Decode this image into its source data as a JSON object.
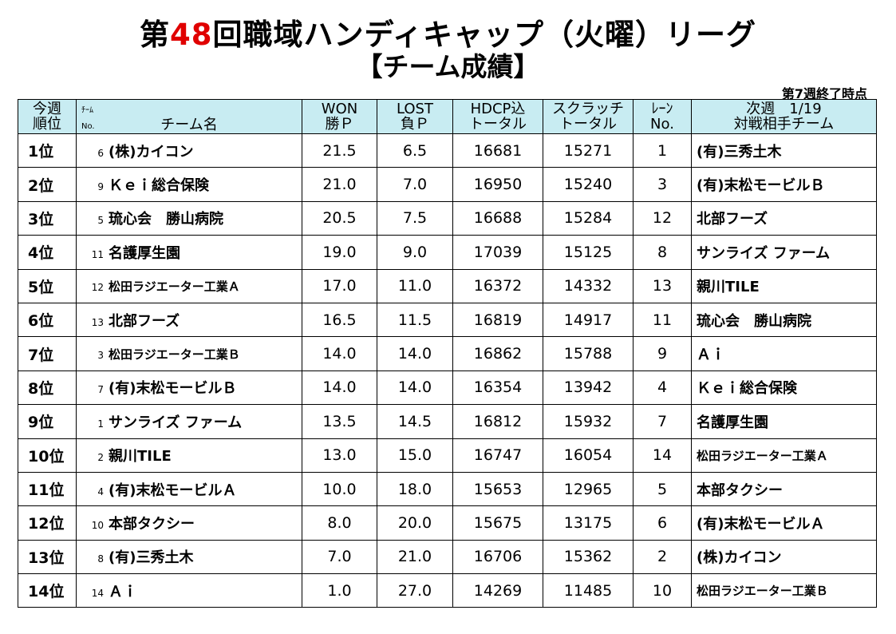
{
  "title": {
    "prefix": "第",
    "number": "48",
    "suffix": "回職域ハンディキャップ（火曜）リーグ"
  },
  "subtitle": "【チーム成績】",
  "status": "第7週終了時点",
  "header": {
    "rank_line1": "今週",
    "rank_line2": "順位",
    "team_tiny1": "ﾁｰﾑ",
    "team_tiny2": "No.",
    "team_label": "チーム名",
    "won_line1": "WON",
    "won_line2": "勝Ｐ",
    "lost_line1": "LOST",
    "lost_line2": "負Ｐ",
    "hdcp_line1": "HDCP込",
    "hdcp_line2": "トータル",
    "scratch_line1": "スクラッチ",
    "scratch_line2": "トータル",
    "lane_line1": "ﾚｰﾝ",
    "lane_line2": "No.",
    "next_line1": "次週　1/19",
    "next_line2": "対戦相手チーム"
  },
  "rows": [
    {
      "rank": "1位",
      "no": "6",
      "team": "(株)カイコン",
      "won": "21.5",
      "lost": "6.5",
      "hdcp": "16681",
      "scratch": "15271",
      "lane": "1",
      "opponent": "(有)三秀土木"
    },
    {
      "rank": "2位",
      "no": "9",
      "team": "Ｋｅｉ総合保険",
      "won": "21.0",
      "lost": "7.0",
      "hdcp": "16950",
      "scratch": "15240",
      "lane": "3",
      "opponent": "(有)末松モービルＢ"
    },
    {
      "rank": "3位",
      "no": "5",
      "team": "琉心会　勝山病院",
      "won": "20.5",
      "lost": "7.5",
      "hdcp": "16688",
      "scratch": "15284",
      "lane": "12",
      "opponent": "北部フーズ"
    },
    {
      "rank": "4位",
      "no": "11",
      "team": "名護厚生園",
      "won": "19.0",
      "lost": "9.0",
      "hdcp": "17039",
      "scratch": "15125",
      "lane": "8",
      "opponent": "サンライズ ファーム"
    },
    {
      "rank": "5位",
      "no": "12",
      "team": "松田ラジエーター工業Ａ",
      "won": "17.0",
      "lost": "11.0",
      "hdcp": "16372",
      "scratch": "14332",
      "lane": "13",
      "opponent": "親川TILE"
    },
    {
      "rank": "6位",
      "no": "13",
      "team": "北部フーズ",
      "won": "16.5",
      "lost": "11.5",
      "hdcp": "16819",
      "scratch": "14917",
      "lane": "11",
      "opponent": "琉心会　勝山病院"
    },
    {
      "rank": "7位",
      "no": "3",
      "team": "松田ラジエーター工業Ｂ",
      "won": "14.0",
      "lost": "14.0",
      "hdcp": "16862",
      "scratch": "15788",
      "lane": "9",
      "opponent": "Ａｉ"
    },
    {
      "rank": "8位",
      "no": "7",
      "team": "(有)末松モービルＢ",
      "won": "14.0",
      "lost": "14.0",
      "hdcp": "16354",
      "scratch": "13942",
      "lane": "4",
      "opponent": "Ｋｅｉ総合保険"
    },
    {
      "rank": "9位",
      "no": "1",
      "team": "サンライズ ファーム",
      "won": "13.5",
      "lost": "14.5",
      "hdcp": "16812",
      "scratch": "15932",
      "lane": "7",
      "opponent": "名護厚生園"
    },
    {
      "rank": "10位",
      "no": "2",
      "team": "親川TILE",
      "won": "13.0",
      "lost": "15.0",
      "hdcp": "16747",
      "scratch": "16054",
      "lane": "14",
      "opponent": "松田ラジエーター工業Ａ"
    },
    {
      "rank": "11位",
      "no": "4",
      "team": "(有)末松モービルＡ",
      "won": "10.0",
      "lost": "18.0",
      "hdcp": "15653",
      "scratch": "12965",
      "lane": "5",
      "opponent": "本部タクシー"
    },
    {
      "rank": "12位",
      "no": "10",
      "team": "本部タクシー",
      "won": "8.0",
      "lost": "20.0",
      "hdcp": "15675",
      "scratch": "13175",
      "lane": "6",
      "opponent": "(有)末松モービルＡ"
    },
    {
      "rank": "13位",
      "no": "8",
      "team": "(有)三秀土木",
      "won": "7.0",
      "lost": "21.0",
      "hdcp": "16706",
      "scratch": "15362",
      "lane": "2",
      "opponent": "(株)カイコン"
    },
    {
      "rank": "14位",
      "no": "14",
      "team": "Ａｉ",
      "won": "1.0",
      "lost": "27.0",
      "hdcp": "14269",
      "scratch": "11485",
      "lane": "10",
      "opponent": "松田ラジエーター工業Ｂ"
    }
  ],
  "colors": {
    "header_bg": "#c8ecf2",
    "title_number": "#e00000"
  }
}
